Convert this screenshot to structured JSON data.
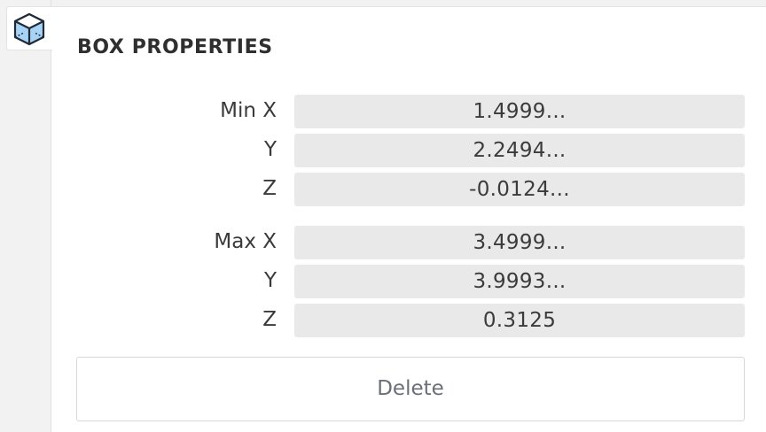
{
  "panel": {
    "title": "BOX PROPERTIES",
    "icon": "cube-icon"
  },
  "min": {
    "x_label": "Min X",
    "y_label": "Y",
    "z_label": "Z",
    "x_value": "1.4999...",
    "y_value": "2.2494...",
    "z_value": "-0.0124..."
  },
  "max": {
    "x_label": "Max X",
    "y_label": "Y",
    "z_label": "Z",
    "x_value": "3.4999...",
    "y_value": "3.9993...",
    "z_value": "0.3125"
  },
  "actions": {
    "delete_label": "Delete"
  },
  "colors": {
    "icon_fill": "#a9d3f5",
    "icon_stroke": "#1f2a36",
    "value_bg": "#e9e9e9",
    "delete_text": "#6b6f78"
  }
}
